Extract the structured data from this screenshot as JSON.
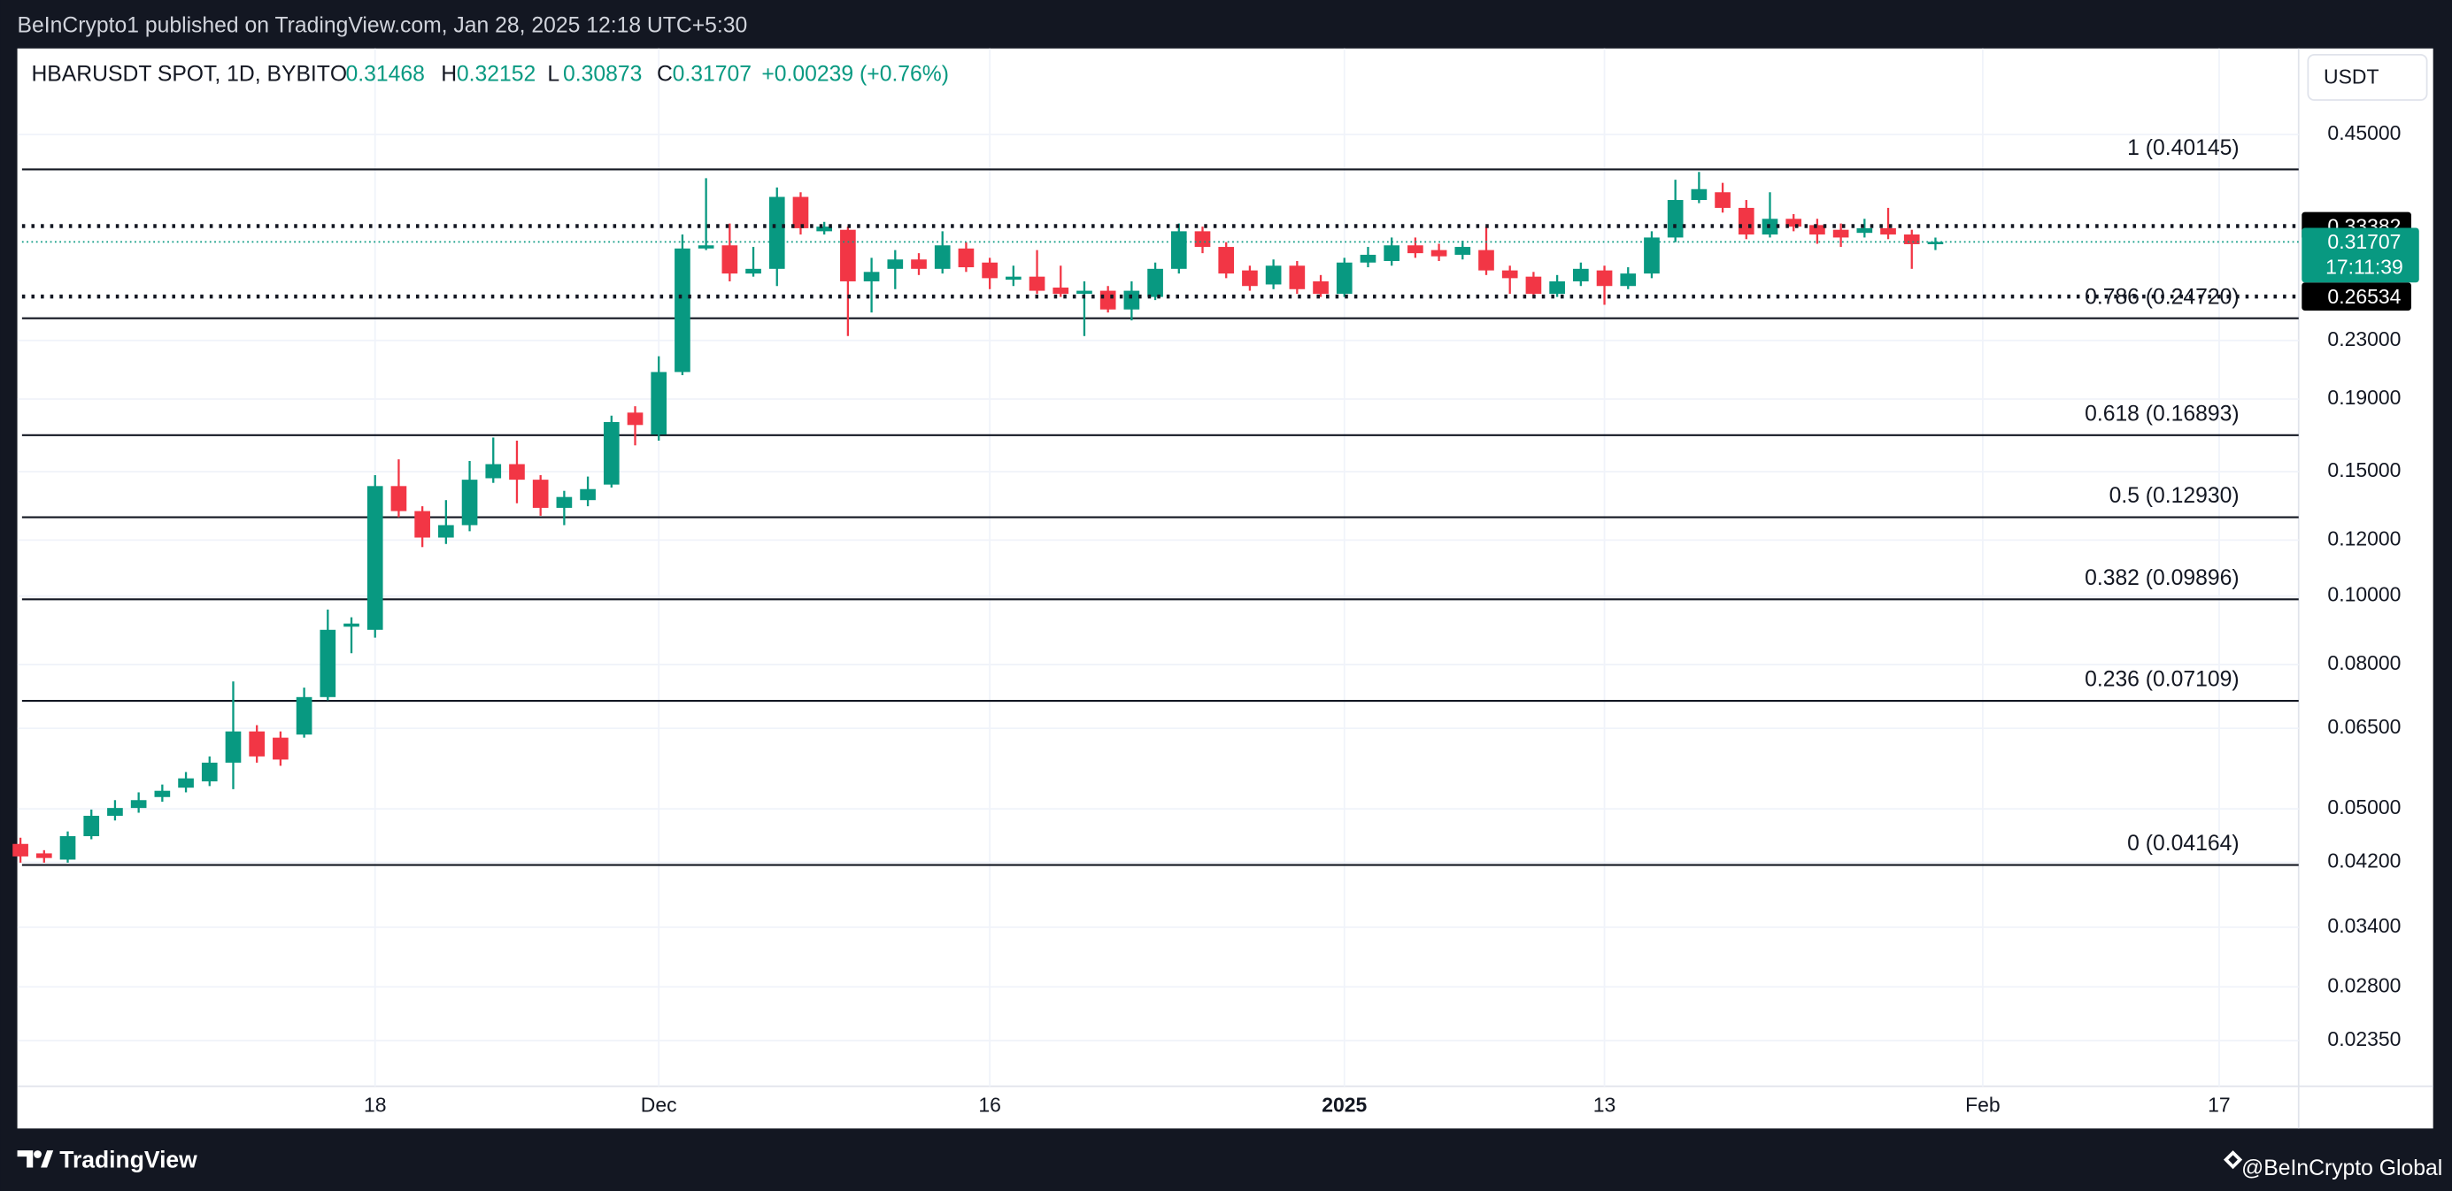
{
  "header": {
    "publisher": "BeInCrypto1 published on TradingView.com, Jan 28, 2025 12:18 UTC+5:30"
  },
  "footer": {
    "brand": "TradingView",
    "credit": "@BeInCrypto Global"
  },
  "chart_data": {
    "type": "candlestick",
    "symbol": "HBARUSDT SPOT, 1D, BYBIT",
    "ohlc_labels": [
      "O",
      "H",
      "L",
      "C"
    ],
    "change": "+0.00239 (+0.76%)",
    "currency": "USDT",
    "countdown": "17:11:39",
    "categories": [
      null,
      null,
      null,
      null,
      null,
      null,
      null,
      null,
      null,
      null,
      null,
      null,
      null,
      null,
      null,
      "18",
      null,
      null,
      null,
      null,
      null,
      null,
      null,
      null,
      null,
      null,
      null,
      "Dec",
      null,
      null,
      null,
      null,
      null,
      null,
      null,
      null,
      null,
      null,
      null,
      null,
      null,
      "16",
      null,
      null,
      null,
      null,
      null,
      null,
      null,
      null,
      null,
      null,
      null,
      null,
      null,
      null,
      "2025",
      null,
      null,
      null,
      null,
      null,
      null,
      null,
      null,
      null,
      null,
      "13",
      null,
      null,
      null,
      null,
      null,
      null,
      null,
      null,
      null,
      null,
      null,
      null,
      null,
      null,
      null,
      "Feb",
      null,
      null,
      null,
      null,
      null,
      null,
      null,
      null,
      null,
      "17"
    ],
    "open": [
      0.0446,
      0.04325,
      0.04238,
      0.04574,
      0.04888,
      0.05014,
      0.05196,
      0.05357,
      0.05468,
      0.05812,
      0.06434,
      0.06305,
      0.06369,
      0.07196,
      0.09051,
      0.08959,
      0.1431,
      0.1319,
      0.121,
      0.126,
      0.1468,
      0.1537,
      0.1461,
      0.1333,
      0.1367,
      0.1438,
      0.1818,
      0.1693,
      0.2075,
      0.3103,
      0.3135,
      0.286,
      0.2904,
      0.3671,
      0.3282,
      0.3298,
      0.2788,
      0.2904,
      0.2994,
      0.2904,
      0.3103,
      0.2964,
      0.2803,
      0.2831,
      0.2732,
      0.2677,
      0.2704,
      0.2544,
      0.265,
      0.2904,
      0.3282,
      0.3119,
      0.2889,
      0.276,
      0.2934,
      0.2788,
      0.2677,
      0.2964,
      0.2979,
      0.3135,
      0.3087,
      0.304,
      0.3087,
      0.2889,
      0.2831,
      0.2677,
      0.2788,
      0.2889,
      0.2746,
      0.286,
      0.3216,
      0.3634,
      0.3727,
      0.3542,
      0.3248,
      0.3418,
      0.3349,
      0.3298,
      0.3265,
      0.3315,
      0.3248,
      0.31468,
      null,
      null,
      null,
      null,
      null,
      null,
      null,
      null,
      null,
      null,
      null,
      null
    ],
    "high": [
      0.04551,
      0.0437,
      0.04645,
      0.04988,
      0.05144,
      0.05276,
      0.05412,
      0.05637,
      0.05931,
      0.07573,
      0.06567,
      0.06434,
      0.07421,
      0.09572,
      0.09332,
      0.1483,
      0.1561,
      0.134,
      0.1367,
      0.1553,
      0.1676,
      0.1659,
      0.1483,
      0.1409,
      0.1476,
      0.18,
      0.1856,
      0.2184,
      0.3248,
      0.3902,
      0.3366,
      0.3119,
      0.3785,
      0.3727,
      0.3384,
      0.3332,
      0.301,
      0.3087,
      0.3056,
      0.3282,
      0.3167,
      0.301,
      0.2934,
      0.3087,
      0.2934,
      0.2788,
      0.2746,
      0.2788,
      0.2964,
      0.3366,
      0.3332,
      0.3167,
      0.2934,
      0.2994,
      0.2979,
      0.2846,
      0.301,
      0.3119,
      0.3216,
      0.3216,
      0.3151,
      0.3183,
      0.3332,
      0.2934,
      0.2875,
      0.2846,
      0.2964,
      0.2934,
      0.2919,
      0.3282,
      0.3882,
      0.3982,
      0.3843,
      0.3634,
      0.3727,
      0.3471,
      0.3418,
      0.3366,
      0.3418,
      0.3542,
      0.3298,
      0.32152,
      null,
      null,
      null,
      null,
      null,
      null,
      null,
      null,
      null,
      null,
      null,
      null
    ],
    "low": [
      0.04196,
      0.04196,
      0.04196,
      0.04528,
      0.04814,
      0.04937,
      0.05117,
      0.05276,
      0.05385,
      0.0533,
      0.05812,
      0.05753,
      0.06305,
      0.07123,
      0.08301,
      0.08734,
      0.1293,
      0.1173,
      0.1185,
      0.1235,
      0.1446,
      0.1353,
      0.1299,
      0.126,
      0.134,
      0.1424,
      0.1634,
      0.1659,
      0.2054,
      0.3087,
      0.2788,
      0.2831,
      0.2746,
      0.3248,
      0.3248,
      0.2333,
      0.2519,
      0.2718,
      0.2846,
      0.286,
      0.2875,
      0.2718,
      0.2746,
      0.2677,
      0.265,
      0.2333,
      0.2519,
      0.2455,
      0.2623,
      0.286,
      0.3056,
      0.2817,
      0.2704,
      0.2718,
      0.2677,
      0.265,
      0.265,
      0.2919,
      0.2934,
      0.301,
      0.2979,
      0.2994,
      0.2846,
      0.2677,
      0.265,
      0.265,
      0.2746,
      0.2583,
      0.2718,
      0.2817,
      0.3167,
      0.3597,
      0.3488,
      0.3199,
      0.3216,
      0.3282,
      0.3151,
      0.3119,
      0.3216,
      0.3199,
      0.2904,
      0.30873,
      null,
      null,
      null,
      null,
      null,
      null,
      null,
      null,
      null,
      null,
      null,
      null
    ],
    "close": [
      0.04282,
      0.0426,
      0.04574,
      0.04888,
      0.05014,
      0.05144,
      0.05303,
      0.05522,
      0.05812,
      0.06434,
      0.05931,
      0.05871,
      0.07196,
      0.08959,
      0.09144,
      0.1431,
      0.1319,
      0.121,
      0.126,
      0.1461,
      0.1537,
      0.1461,
      0.1333,
      0.1381,
      0.1417,
      0.1763,
      0.1746,
      0.2075,
      0.3103,
      0.3135,
      0.286,
      0.2904,
      0.3671,
      0.3315,
      0.3332,
      0.2788,
      0.2875,
      0.2994,
      0.2904,
      0.3135,
      0.2919,
      0.2817,
      0.2831,
      0.2704,
      0.2677,
      0.2704,
      0.2544,
      0.2704,
      0.2904,
      0.3282,
      0.3119,
      0.286,
      0.2746,
      0.2934,
      0.2718,
      0.2677,
      0.2964,
      0.304,
      0.3135,
      0.3056,
      0.3025,
      0.3119,
      0.2889,
      0.2817,
      0.2677,
      0.2788,
      0.2904,
      0.2746,
      0.286,
      0.3216,
      0.3634,
      0.3765,
      0.3542,
      0.3248,
      0.3418,
      0.3332,
      0.3248,
      0.3216,
      0.3315,
      0.3248,
      0.3147,
      0.31707,
      null,
      null,
      null,
      null,
      null,
      null,
      null,
      null,
      null,
      null,
      null,
      null
    ],
    "up_color": "#089981",
    "down_color": "#f23645",
    "ylim": [
      0.01783,
      0.5954
    ],
    "log_scale": true,
    "grid": true,
    "yticks": [
      {
        "value": 0.45,
        "label": "0.45000"
      },
      {
        "value": 0.23,
        "label": "0.23000"
      },
      {
        "value": 0.19,
        "label": "0.19000"
      },
      {
        "value": 0.15,
        "label": "0.15000"
      },
      {
        "value": 0.12,
        "label": "0.12000"
      },
      {
        "value": 0.1,
        "label": "0.10000"
      },
      {
        "value": 0.08,
        "label": "0.08000"
      },
      {
        "value": 0.065,
        "label": "0.06500"
      },
      {
        "value": 0.05,
        "label": "0.05000"
      },
      {
        "value": 0.042,
        "label": "0.04200"
      },
      {
        "value": 0.034,
        "label": "0.03400"
      },
      {
        "value": 0.028,
        "label": "0.02800"
      },
      {
        "value": 0.0235,
        "label": "0.02350"
      }
    ],
    "price_lines": [
      0.33382,
      0.26534
    ],
    "fib_levels": [
      {
        "value": 0.40145,
        "label": "1 (0.40145)"
      },
      {
        "value": 0.2472,
        "label": "0.786 (0.24720)"
      },
      {
        "value": 0.16893,
        "label": "0.618 (0.16893)"
      },
      {
        "value": 0.1293,
        "label": "0.5 (0.12930)"
      },
      {
        "value": 0.09896,
        "label": "0.382 (0.09896)"
      },
      {
        "value": 0.07109,
        "label": "0.236 (0.07109)"
      },
      {
        "value": 0.04164,
        "label": "0 (0.04164)"
      }
    ]
  }
}
